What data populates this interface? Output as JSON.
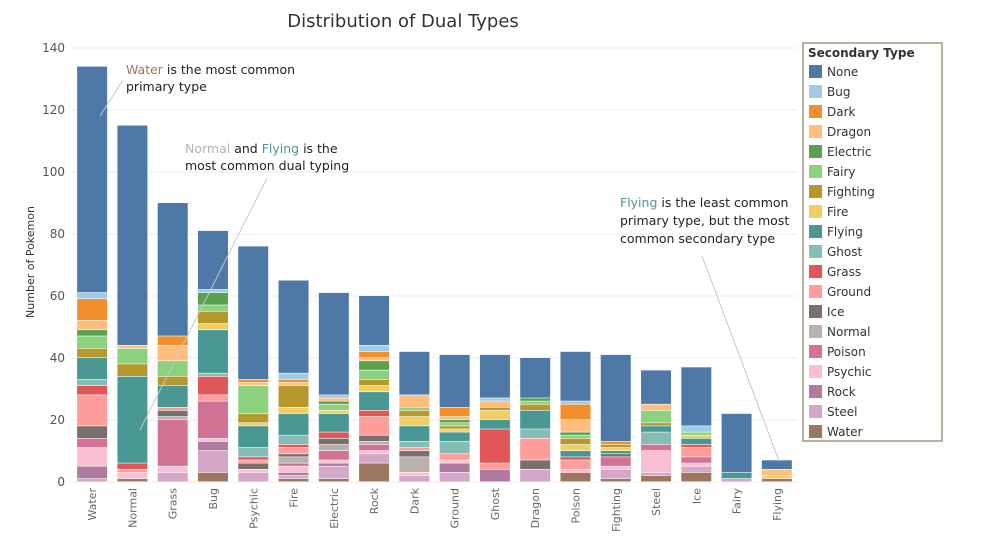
{
  "chart_data": {
    "type": "bar",
    "stacked": true,
    "title": "Distribution of Dual Types",
    "ylabel": "Number of Pokemon",
    "xlabel": "",
    "ylim": [
      0,
      140
    ],
    "yticks": [
      0,
      20,
      40,
      60,
      80,
      100,
      120,
      140
    ],
    "grid": true,
    "legend": {
      "title": "Secondary Type",
      "placement": "right",
      "entries": [
        {
          "name": "None",
          "color": "#4e79a7"
        },
        {
          "name": "Bug",
          "color": "#a0cbe8"
        },
        {
          "name": "Dark",
          "color": "#f28e2b"
        },
        {
          "name": "Dragon",
          "color": "#ffbe7d"
        },
        {
          "name": "Electric",
          "color": "#59a14f"
        },
        {
          "name": "Fairy",
          "color": "#8cd17d"
        },
        {
          "name": "Fighting",
          "color": "#b6992d"
        },
        {
          "name": "Fire",
          "color": "#f1ce63"
        },
        {
          "name": "Flying",
          "color": "#499894"
        },
        {
          "name": "Ghost",
          "color": "#86bcb6"
        },
        {
          "name": "Grass",
          "color": "#e15759"
        },
        {
          "name": "Ground",
          "color": "#ff9d9a"
        },
        {
          "name": "Ice",
          "color": "#79706e"
        },
        {
          "name": "Normal",
          "color": "#bab0ac"
        },
        {
          "name": "Poison",
          "color": "#d37295"
        },
        {
          "name": "Psychic",
          "color": "#fabfd2"
        },
        {
          "name": "Rock",
          "color": "#b07aa1"
        },
        {
          "name": "Steel",
          "color": "#d4a6c8"
        },
        {
          "name": "Water",
          "color": "#9d7660"
        }
      ]
    },
    "categories": [
      "Water",
      "Normal",
      "Grass",
      "Bug",
      "Psychic",
      "Fire",
      "Electric",
      "Rock",
      "Dark",
      "Ground",
      "Ghost",
      "Dragon",
      "Poison",
      "Fighting",
      "Steel",
      "Ice",
      "Fairy",
      "Flying"
    ],
    "stack_order": [
      "Water",
      "Steel",
      "Rock",
      "Psychic",
      "Poison",
      "Normal",
      "Ice",
      "Ground",
      "Grass",
      "Ghost",
      "Flying",
      "Fire",
      "Fighting",
      "Fairy",
      "Electric",
      "Dragon",
      "Dark",
      "Bug",
      "None"
    ],
    "stacks": {
      "Water": {
        "Steel": 1,
        "Rock": 4,
        "Psychic": 6,
        "Poison": 3,
        "Ice": 4,
        "Ground": 10,
        "Grass": 3,
        "Ghost": 2,
        "Flying": 7,
        "Fighting": 3,
        "Fairy": 4,
        "Electric": 2,
        "Dragon": 3,
        "Dark": 7,
        "Bug": 2,
        "None": 73
      },
      "Normal": {
        "Water": 1,
        "Psychic": 2,
        "Grass": 2,
        "Ground": 1,
        "Flying": 28,
        "Fighting": 4,
        "Fairy": 5,
        "Dragon": 1,
        "None": 71
      },
      "Grass": {
        "Steel": 3,
        "Psychic": 2,
        "Poison": 15,
        "Normal": 1,
        "Ice": 2,
        "Ground": 1,
        "Flying": 7,
        "Fighting": 3,
        "Fairy": 5,
        "Dragon": 5,
        "Dark": 3,
        "None": 43
      },
      "Bug": {
        "Water": 3,
        "Steel": 7,
        "Rock": 3,
        "Psychic": 1,
        "Poison": 12,
        "Ground": 2,
        "Grass": 6,
        "Ghost": 1,
        "Flying": 14,
        "Fire": 2,
        "Fighting": 4,
        "Fairy": 2,
        "Electric": 4,
        "Bug": 1,
        "None": 19
      },
      "Psychic": {
        "Steel": 3,
        "Psychic": 1,
        "Ice": 2,
        "Grass": 1,
        "Ground": 1,
        "Ghost": 3,
        "Flying": 7,
        "Fire": 1,
        "Fighting": 3,
        "Fairy": 9,
        "Dragon": 1,
        "Dark": 1,
        "None": 43
      },
      "Fire": {
        "Water": 1,
        "Steel": 1,
        "Rock": 1,
        "Psychic": 2,
        "Poison": 1,
        "Normal": 2,
        "Ice": 1,
        "Ground": 2,
        "Grass": 1,
        "Ghost": 3,
        "Flying": 7,
        "Fire": 2,
        "Fighting": 7,
        "Dragon": 1,
        "Dark": 1,
        "Bug": 2,
        "None": 30
      },
      "Electric": {
        "Water": 1,
        "Steel": 4,
        "Rock": 1,
        "Psychic": 1,
        "Poison": 3,
        "Normal": 2,
        "Ice": 2,
        "Grass": 2,
        "Flying": 6,
        "Fire": 1,
        "Fairy": 2,
        "Electric": 1,
        "Dragon": 1,
        "Bug": 1,
        "None": 33
      },
      "Rock": {
        "Water": 6,
        "Steel": 3,
        "Psychic": 1,
        "Poison": 2,
        "Normal": 1,
        "Ice": 2,
        "Ground": 6,
        "Grass": 2,
        "Flying": 6,
        "Fire": 2,
        "Fighting": 2,
        "Fairy": 3,
        "Electric": 3,
        "Dragon": 1,
        "Dark": 2,
        "Bug": 2,
        "None": 16
      },
      "Dark": {
        "Steel": 2,
        "Psychic": 1,
        "Normal": 5,
        "Ice": 2,
        "Ground": 1,
        "Ghost": 2,
        "Flying": 5,
        "Fire": 3,
        "Fighting": 2,
        "Fairy": 1,
        "Dragon": 4,
        "None": 14
      },
      "Ground": {
        "Steel": 3,
        "Rock": 3,
        "Psychic": 1,
        "Ground": 2,
        "Ghost": 4,
        "Flying": 3,
        "Fire": 1,
        "Fighting": 1,
        "Fairy": 1,
        "Electric": 1,
        "Dragon": 1,
        "Dark": 3,
        "None": 17
      },
      "Ghost": {
        "Rock": 4,
        "Ground": 2,
        "Grass": 11,
        "Flying": 3,
        "Fire": 3,
        "Fighting": 1,
        "Dragon": 2,
        "Bug": 1,
        "None": 14
      },
      "Dragon": {
        "Steel": 4,
        "Ice": 3,
        "Ground": 7,
        "Ghost": 3,
        "Flying": 6,
        "Fighting": 2,
        "Fairy": 1,
        "Electric": 1,
        "None": 13
      },
      "Poison": {
        "Water": 3,
        "Psychic": 1,
        "Ground": 3,
        "Grass": 1,
        "Flying": 2,
        "Fire": 2,
        "Fighting": 2,
        "Fairy": 1,
        "Electric": 1,
        "Dragon": 4,
        "Dark": 5,
        "Bug": 1,
        "None": 16
      },
      "Fighting": {
        "Water": 1,
        "Steel": 3,
        "Psychic": 1,
        "Poison": 3,
        "Ice": 1,
        "Flying": 1,
        "Fire": 1,
        "Fighting": 1,
        "Dark": 1,
        "None": 28
      },
      "Steel": {
        "Water": 2,
        "Steel": 1,
        "Psychic": 7,
        "Poison": 2,
        "Ghost": 4,
        "Flying": 2,
        "Fighting": 1,
        "Fairy": 4,
        "Dragon": 2,
        "None": 11
      },
      "Ice": {
        "Water": 3,
        "Steel": 2,
        "Psychic": 1,
        "Poison": 2,
        "Ground": 3,
        "Grass": 1,
        "Flying": 2,
        "Fire": 1,
        "Fairy": 1,
        "Bug": 2,
        "None": 19
      },
      "Fairy": {
        "Steel": 1,
        "Flying": 2,
        "None": 19
      },
      "Flying": {
        "Water": 1,
        "Dragon": 2,
        "Fire": 1,
        "None": 3
      }
    },
    "annotations": [
      {
        "parts": [
          {
            "text": "Water",
            "color": "#9d7660"
          },
          {
            "text": " is the most common",
            "color": "#222222"
          }
        ],
        "line2": "primary type",
        "target": "Water"
      },
      {
        "parts": [
          {
            "text": "Normal",
            "color": "#bab0ac"
          },
          {
            "text": " and ",
            "color": "#222222"
          },
          {
            "text": "Flying",
            "color": "#499894"
          },
          {
            "text": " is the",
            "color": "#222222"
          }
        ],
        "line2": "most common dual typing",
        "target": "Normal"
      },
      {
        "parts": [
          {
            "text": "Flying",
            "color": "#499894"
          },
          {
            "text": " is the least common",
            "color": "#222222"
          }
        ],
        "line2": "primary type, but the most",
        "line3": "common secondary type",
        "target": "Flying"
      }
    ]
  }
}
